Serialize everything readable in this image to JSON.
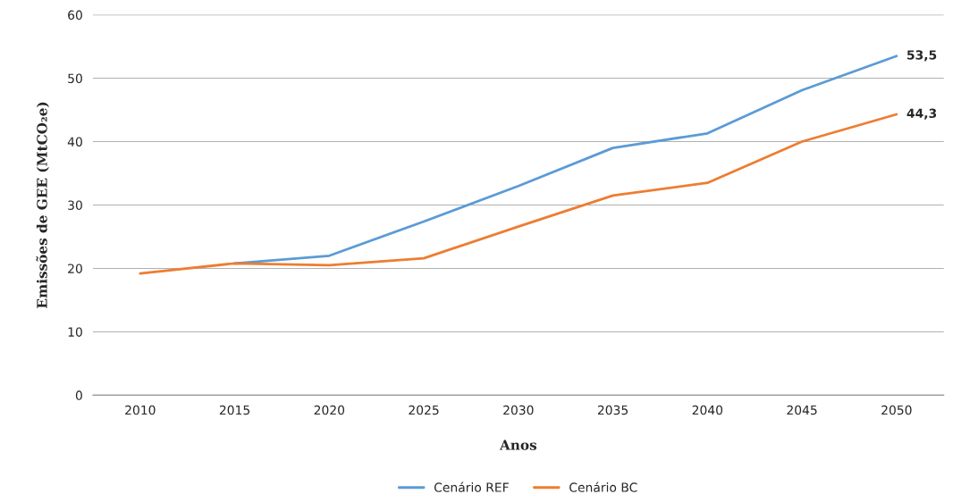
{
  "chart_data": {
    "type": "line",
    "xlabel": "Anos",
    "ylabel": "Emissões de GEE (MtCO₂e)",
    "categories": [
      "2010",
      "2015",
      "2020",
      "2025",
      "2030",
      "2035",
      "2040",
      "2045",
      "2050"
    ],
    "series": [
      {
        "name": "Cenário REF",
        "color": "#5b9bd5",
        "values": [
          null,
          20.8,
          22.0,
          27.4,
          33.0,
          39.0,
          41.3,
          48.1,
          53.5
        ],
        "value_labels": [
          null,
          null,
          null,
          null,
          null,
          null,
          null,
          null,
          "53,5"
        ]
      },
      {
        "name": "Cenário BC",
        "color": "#ed7d31",
        "values": [
          19.2,
          20.8,
          20.5,
          21.6,
          26.6,
          31.5,
          33.5,
          40.0,
          44.3
        ],
        "value_labels": [
          null,
          null,
          null,
          null,
          null,
          null,
          null,
          null,
          "44,3"
        ]
      }
    ],
    "ylim": [
      0,
      60
    ],
    "yticks": [
      0,
      10,
      20,
      30,
      40,
      50,
      60
    ],
    "grid": "y",
    "legend": "bottom",
    "marker": "none",
    "line_style": "solid"
  }
}
